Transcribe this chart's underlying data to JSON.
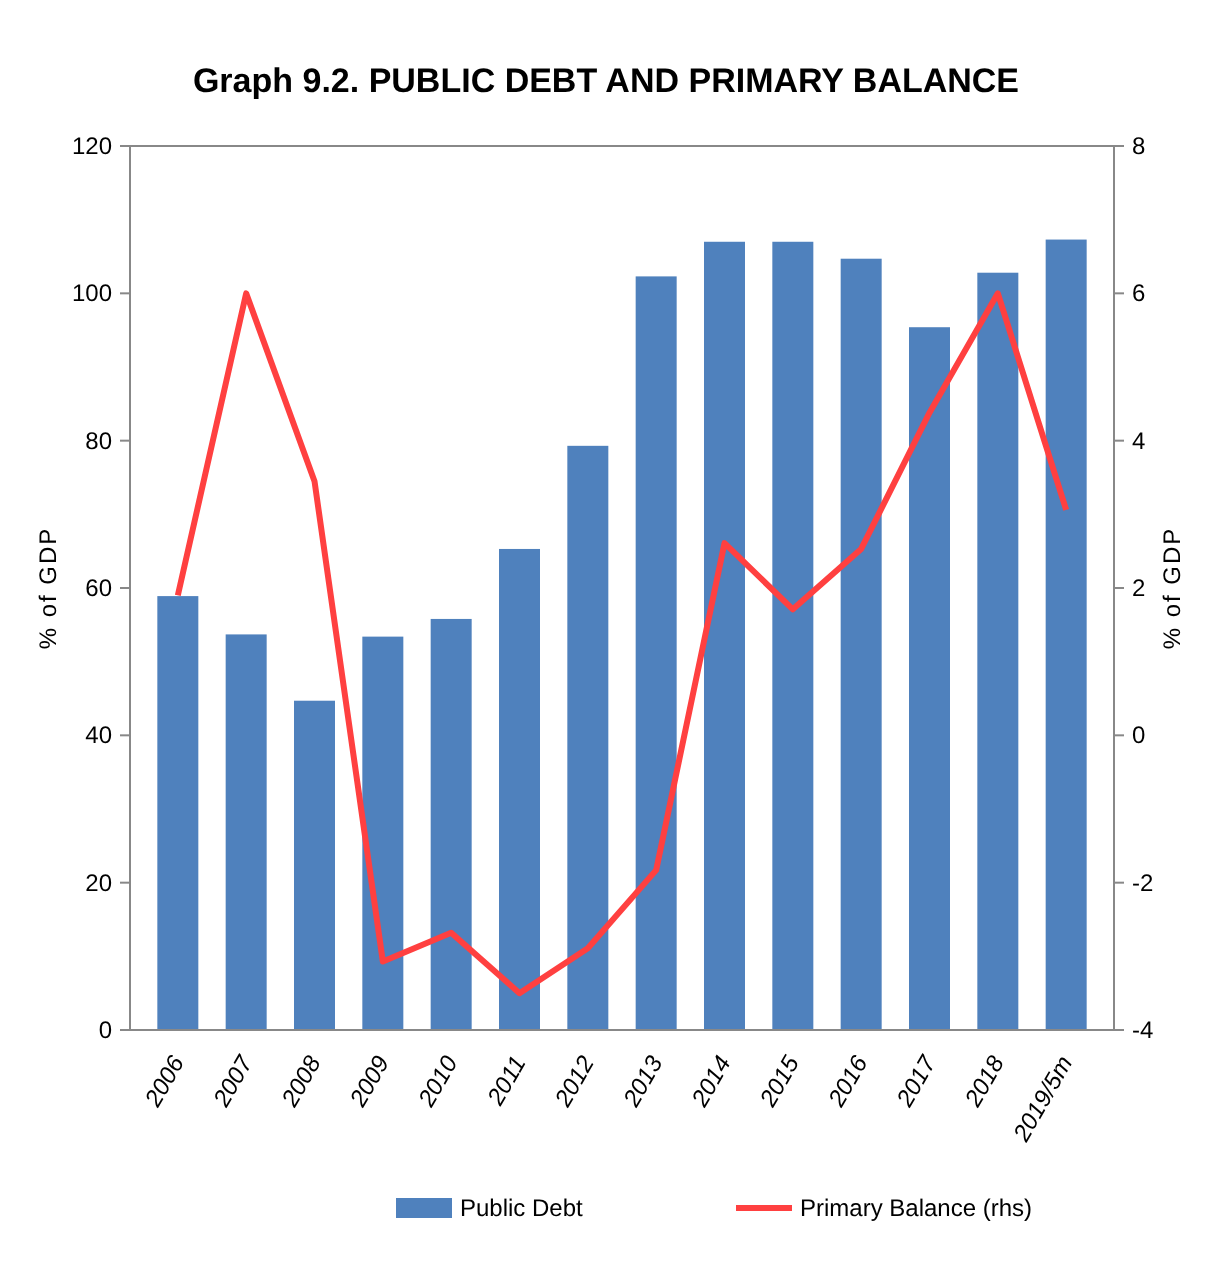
{
  "chart_data": {
    "type": "bar",
    "title": "Graph 9.2. PUBLIC DEBT AND PRIMARY BALANCE",
    "ylabel": "% of GDP",
    "y2label": "% of GDP",
    "categories": [
      "2006",
      "2007",
      "2008",
      "2009",
      "2010",
      "2011",
      "2012",
      "2013",
      "2014",
      "2015",
      "2016",
      "2017",
      "2018",
      "2019/5m"
    ],
    "series": [
      {
        "name": "Public Debt",
        "color": "#4f81bd",
        "values": [
          58.9,
          53.7,
          44.7,
          53.4,
          55.8,
          65.3,
          79.3,
          102.3,
          107,
          107,
          104.7,
          95.4,
          102.8,
          107.3
        ]
      },
      {
        "name": "Primary Balance (rhs)",
        "type": "line",
        "axis": "y2",
        "color": "#ff4040",
        "values": [
          1.9,
          6.0,
          3.45,
          -3.07,
          -2.68,
          -3.5,
          -2.89,
          -1.83,
          2.61,
          1.71,
          2.53,
          4.38,
          6.0,
          3.06
        ]
      }
    ],
    "ylim": [
      0,
      120
    ],
    "yticks": [
      0,
      20,
      40,
      60,
      80,
      100,
      120
    ],
    "y2lim": [
      -4,
      8
    ],
    "y2ticks": [
      -4,
      -2,
      0,
      2,
      4,
      6,
      8
    ],
    "grid": false,
    "legend": "bottom",
    "marker": "none",
    "line_style": "solid"
  }
}
